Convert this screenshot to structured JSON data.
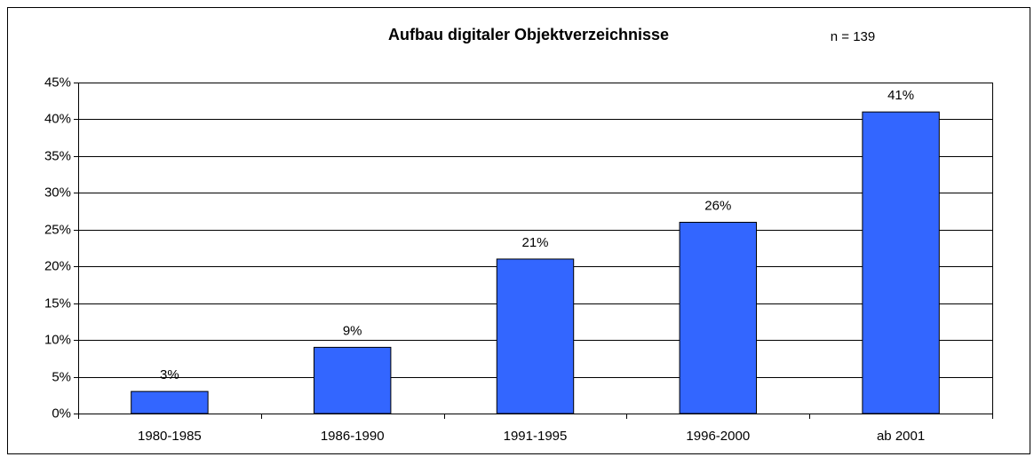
{
  "chart_data": {
    "type": "bar",
    "title": "Aufbau digitaler Objektverzeichnisse",
    "annotation": "n = 139",
    "categories": [
      "1980-1985",
      "1986-1990",
      "1991-1995",
      "1996-2000",
      "ab 2001"
    ],
    "values": [
      3,
      9,
      21,
      26,
      41
    ],
    "value_labels": [
      "3%",
      "9%",
      "21%",
      "26%",
      "41%"
    ],
    "color": "#3366ff",
    "ylim": [
      0,
      45
    ],
    "yticks": [
      {
        "value": 0,
        "label": "0%"
      },
      {
        "value": 5,
        "label": "5%"
      },
      {
        "value": 10,
        "label": "10%"
      },
      {
        "value": 15,
        "label": "15%"
      },
      {
        "value": 20,
        "label": "20%"
      },
      {
        "value": 25,
        "label": "25%"
      },
      {
        "value": 30,
        "label": "30%"
      },
      {
        "value": 35,
        "label": "35%"
      },
      {
        "value": 40,
        "label": "40%"
      },
      {
        "value": 45,
        "label": "45%"
      }
    ],
    "grid": true
  }
}
